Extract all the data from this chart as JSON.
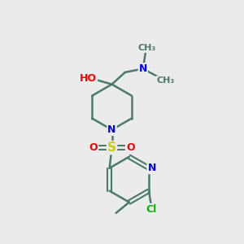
{
  "bg_color": "#ebebeb",
  "atom_colors": {
    "C": "#4a7a6a",
    "N": "#0000ee",
    "O": "#ff0000",
    "S": "#cccc00",
    "Cl": "#00bb00",
    "H": "#808080"
  },
  "bond_color": "#4a7a6a",
  "figsize": [
    3.0,
    3.0
  ],
  "dpi": 100,
  "xlim": [
    0,
    10
  ],
  "ylim": [
    0,
    10
  ]
}
